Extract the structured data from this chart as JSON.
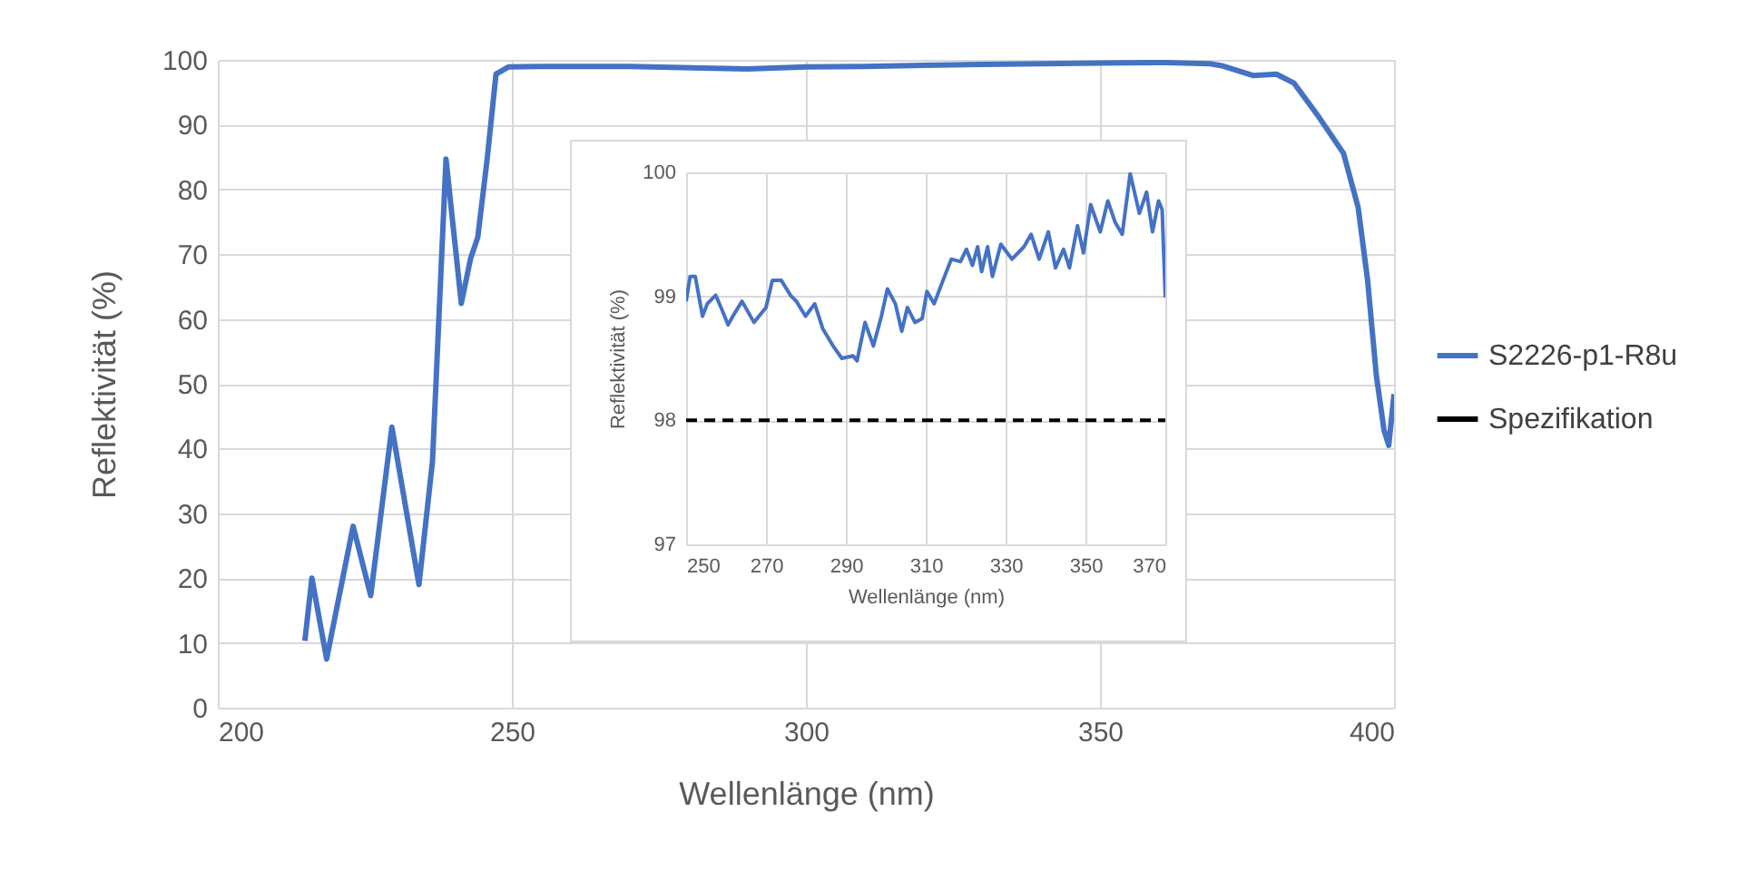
{
  "chart_data": [
    {
      "type": "line",
      "xlabel": "Wellenlänge (nm)",
      "ylabel": "Reflektivität (%)",
      "xlim": [
        200,
        400
      ],
      "ylim": [
        0,
        100
      ],
      "xticks": [
        200,
        250,
        300,
        350,
        400
      ],
      "yticks": [
        0,
        10,
        20,
        30,
        40,
        50,
        60,
        70,
        80,
        90,
        100
      ],
      "grid": true,
      "legend": "right",
      "series": [
        {
          "name": "S2226-p1-R8u",
          "color": "#4472c4",
          "x": [
            214.8,
            216,
            218.5,
            223,
            226,
            229.6,
            234.2,
            236.5,
            238.8,
            241.4,
            243,
            244.2,
            245.8,
            247.3,
            249.4,
            255,
            270,
            290,
            300,
            310,
            330,
            350,
            360,
            368.7,
            370.7,
            376,
            380,
            383,
            387.2,
            391.4,
            393.9,
            395.5,
            397,
            398.3,
            399.1,
            400
          ],
          "values": [
            10.3,
            20,
            7.5,
            28,
            17.3,
            43.3,
            19,
            38,
            84.7,
            62.4,
            69.4,
            72.6,
            84.7,
            97.8,
            98.9,
            99,
            99,
            98.6,
            98.9,
            99,
            99.3,
            99.5,
            99.6,
            99.4,
            99.1,
            97.6,
            97.8,
            96.4,
            91.2,
            85.6,
            77.2,
            66,
            51.2,
            42.8,
            40.5,
            48.4
          ]
        }
      ]
    },
    {
      "type": "line",
      "xlabel": "Wellenlänge (nm)",
      "ylabel": "Reflektivität (%)",
      "xlim": [
        250,
        370
      ],
      "ylim": [
        97,
        100
      ],
      "xticks": [
        250,
        270,
        290,
        310,
        330,
        350,
        370
      ],
      "yticks": [
        97,
        98,
        99,
        100
      ],
      "grid": true,
      "series": [
        {
          "color": "#4472c4",
          "x": [
            250,
            251,
            252.3,
            254.1,
            255.3,
            257.4,
            259,
            260.5,
            261.7,
            264,
            267,
            270,
            271.6,
            273.8,
            276.1,
            277.6,
            279.9,
            282.2,
            284.2,
            286.8,
            289,
            291.8,
            292.8,
            294.8,
            296.9,
            298.9,
            300.4,
            302.4,
            304,
            305.4,
            307.3,
            309.1,
            310.3,
            312.1,
            314.1,
            316.4,
            318.7,
            320.2,
            321.7,
            323,
            324,
            325.5,
            326.7,
            328.8,
            331.6,
            334.6,
            336.4,
            338.4,
            340.7,
            342.5,
            344.5,
            346,
            348,
            349.5,
            351.3,
            353.7,
            355.6,
            357.4,
            359.2,
            361.2,
            363.5,
            365.3,
            366.8,
            368.3,
            369.2,
            370
          ],
          "values": [
            98.96,
            99.16,
            99.16,
            98.84,
            98.94,
            99.01,
            98.89,
            98.77,
            98.84,
            98.96,
            98.79,
            98.91,
            99.13,
            99.13,
            99.01,
            98.96,
            98.84,
            98.94,
            98.74,
            98.6,
            98.5,
            98.52,
            98.48,
            98.79,
            98.6,
            98.84,
            99.06,
            98.94,
            98.72,
            98.91,
            98.79,
            98.82,
            99.04,
            98.94,
            99.11,
            99.3,
            99.28,
            99.38,
            99.25,
            99.4,
            99.2,
            99.4,
            99.16,
            99.42,
            99.3,
            99.4,
            99.5,
            99.3,
            99.52,
            99.23,
            99.38,
            99.23,
            99.57,
            99.35,
            99.74,
            99.52,
            99.77,
            99.6,
            99.5,
            99.99,
            99.67,
            99.84,
            99.52,
            99.77,
            99.7,
            98.99
          ]
        },
        {
          "name": "Spezifikation",
          "color": "#000000",
          "line_style": "dashed",
          "x": [
            250,
            370
          ],
          "values": [
            98,
            98
          ]
        }
      ]
    }
  ]
}
